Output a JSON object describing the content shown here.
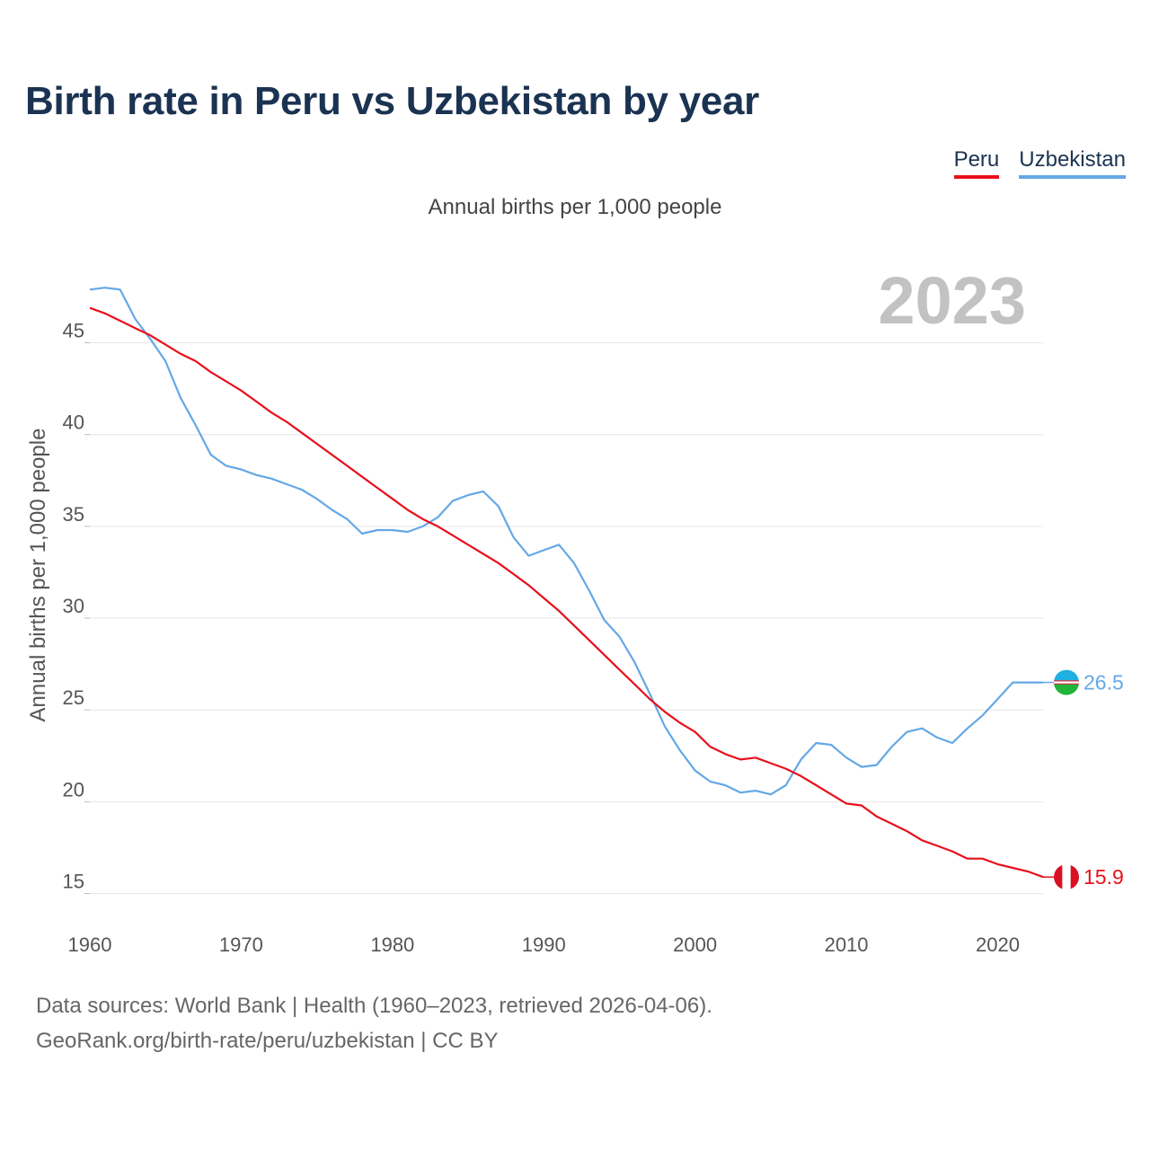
{
  "title": "Birth rate in Peru vs Uzbekistan by year",
  "subtitle": "Annual births per 1,000 people",
  "year_label": "2023",
  "legend": [
    {
      "name": "Peru",
      "color": "#e8101c"
    },
    {
      "name": "Uzbekistan",
      "color": "#64a8e6"
    }
  ],
  "source": {
    "line1": "Data sources: World Bank | Health (1960–2023, retrieved 2026-04-06).",
    "line2": "GeoRank.org/birth-rate/peru/uzbekistan | CC BY"
  },
  "chart_data": {
    "type": "line",
    "title": "Birth rate in Peru vs Uzbekistan by year",
    "xlabel": "",
    "ylabel": "Annual births per 1,000 people",
    "xlim": [
      1960,
      2023
    ],
    "ylim": [
      14,
      48.5
    ],
    "x_ticks": [
      1960,
      1970,
      1980,
      1990,
      2000,
      2010,
      2020
    ],
    "y_ticks": [
      15,
      20,
      25,
      30,
      35,
      40,
      45
    ],
    "grid": true,
    "series": [
      {
        "name": "Peru",
        "color": "#e8101c",
        "end_label": "15.9",
        "x_start": 1960,
        "values": [
          46.9,
          46.6,
          46.2,
          45.8,
          45.4,
          44.9,
          44.4,
          44.0,
          43.4,
          42.9,
          42.4,
          41.8,
          41.2,
          40.7,
          40.1,
          39.5,
          38.9,
          38.3,
          37.7,
          37.1,
          36.5,
          35.9,
          35.4,
          35.0,
          34.5,
          34.0,
          33.5,
          33.0,
          32.4,
          31.8,
          31.1,
          30.4,
          29.6,
          28.8,
          28.0,
          27.2,
          26.4,
          25.6,
          24.9,
          24.3,
          23.8,
          23.0,
          22.6,
          22.3,
          22.4,
          22.1,
          21.8,
          21.4,
          20.9,
          20.4,
          19.9,
          19.8,
          19.2,
          18.8,
          18.4,
          17.9,
          17.6,
          17.3,
          16.9,
          16.9,
          16.6,
          16.4,
          16.2,
          15.9
        ]
      },
      {
        "name": "Uzbekistan",
        "color": "#64a8e6",
        "end_label": "26.5",
        "x_start": 1960,
        "values": [
          47.9,
          48.0,
          47.9,
          46.3,
          45.2,
          44.0,
          42.0,
          40.5,
          38.9,
          38.3,
          38.1,
          37.8,
          37.6,
          37.3,
          37.0,
          36.5,
          35.9,
          35.4,
          34.6,
          34.8,
          34.8,
          34.7,
          35.0,
          35.5,
          36.4,
          36.7,
          36.9,
          36.1,
          34.4,
          33.4,
          33.7,
          34.0,
          33.0,
          31.5,
          29.9,
          29.0,
          27.6,
          25.9,
          24.1,
          22.8,
          21.7,
          21.1,
          20.9,
          20.5,
          20.6,
          20.4,
          20.9,
          22.3,
          23.2,
          23.1,
          22.4,
          21.9,
          22.0,
          23.0,
          23.8,
          24.0,
          23.5,
          23.2,
          24.0,
          24.7,
          25.6,
          26.5,
          26.5,
          26.5
        ]
      }
    ]
  }
}
